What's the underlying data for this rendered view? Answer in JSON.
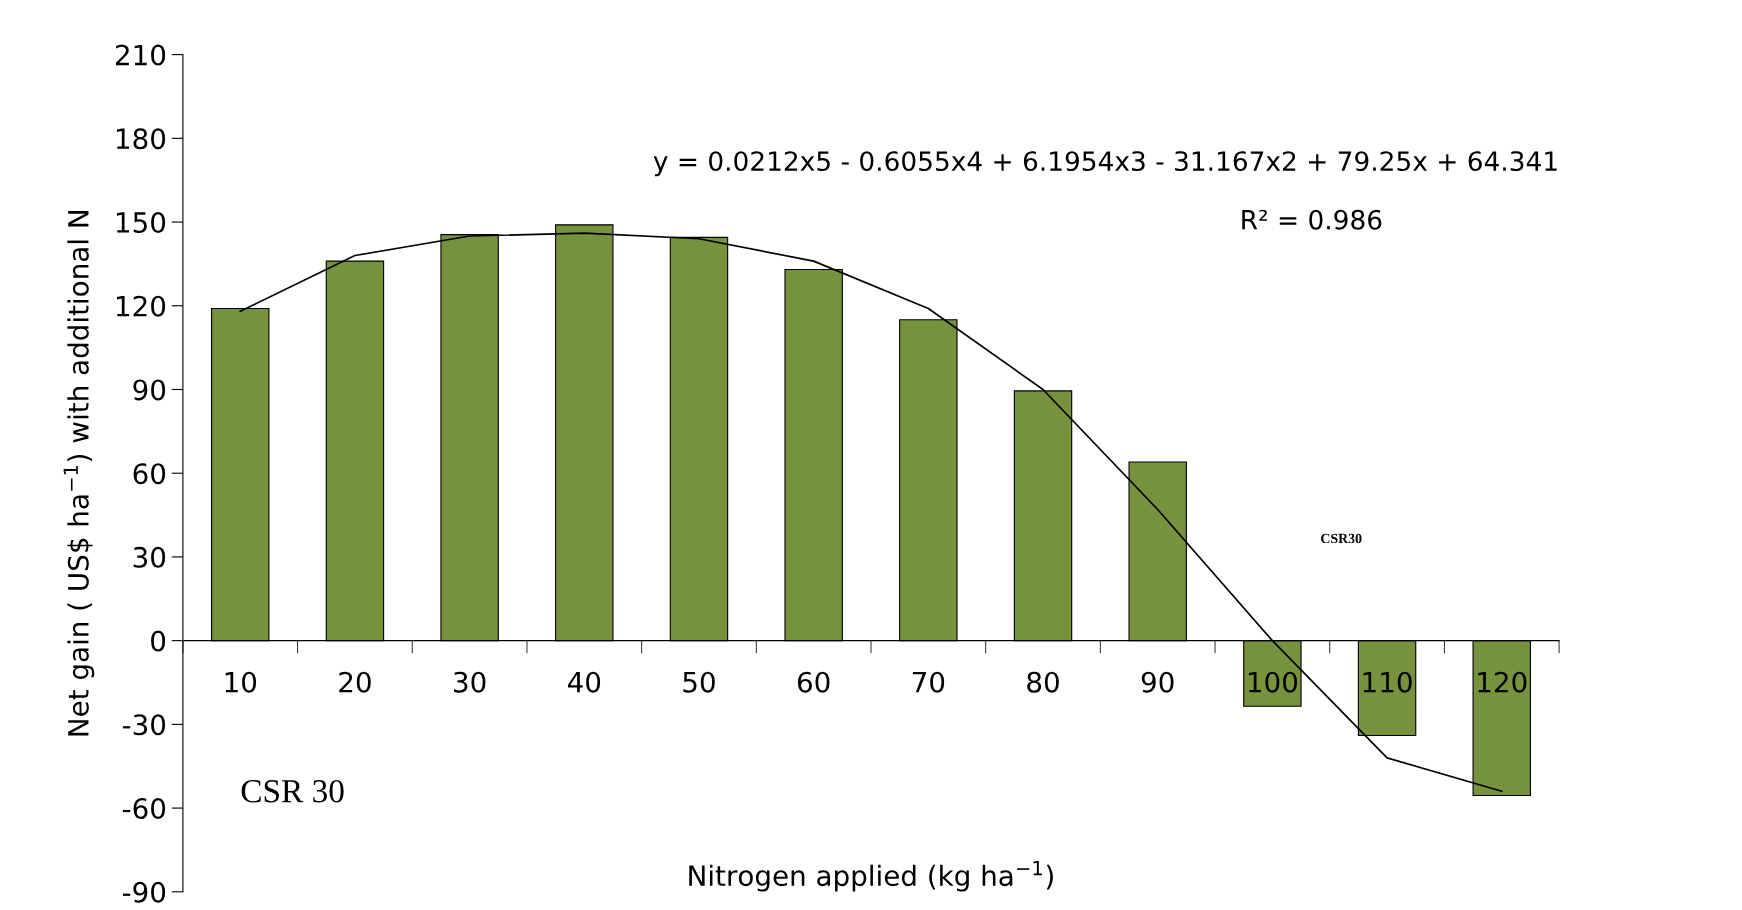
{
  "chart_data": {
    "type": "bar",
    "xlabel": "Nitrogen applied (kg ha$^{−1}$)",
    "ylabel": "Net gain ( US$ ha$^{−1}$) with additional N",
    "categories": [
      "10",
      "20",
      "30",
      "40",
      "50",
      "60",
      "70",
      "80",
      "90",
      "100",
      "110",
      "120"
    ],
    "series": [
      {
        "type": "bar",
        "color": "#76923c",
        "values": [
          119,
          136,
          145.5,
          149,
          144.5,
          133,
          115,
          89.5,
          64,
          -23.5,
          -34,
          -55.5
        ]
      },
      {
        "type": "line",
        "color": "#000000",
        "values": [
          118,
          138,
          145,
          146,
          144,
          136,
          119,
          90,
          47,
          0,
          -42,
          -54
        ]
      }
    ],
    "ylim": [
      -90,
      210
    ],
    "yticks": [
      -90,
      -60,
      -30,
      0,
      30,
      60,
      90,
      120,
      150,
      180,
      210
    ],
    "annotations": [
      "y = 0.0212x5 - 0.6055x4 + 6.1954x3 - 31.167x2 + 79.25x + 64.341",
      "R² = 0.986",
      "CSR30",
      "CSR 30"
    ],
    "grid": false,
    "legend": false,
    "line_style": "solid",
    "marker": "none"
  }
}
